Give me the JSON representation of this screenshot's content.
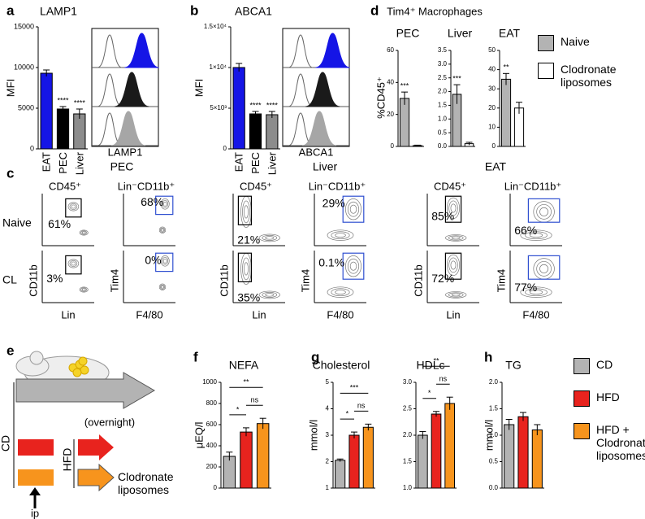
{
  "panel_letters": [
    "a",
    "b",
    "c",
    "d",
    "e",
    "f",
    "g",
    "h"
  ],
  "chart_data": [
    {
      "type": "bar",
      "title": "LAMP1",
      "ylabel": "MFI",
      "categories": [
        "EAT",
        "PEC",
        "Liver"
      ],
      "values": [
        9300,
        4900,
        4300
      ],
      "errors": [
        400,
        300,
        600
      ],
      "colors": [
        "#1515e6",
        "#000000",
        "#8c8c8c"
      ],
      "ylim": [
        0,
        15000
      ],
      "yticks": [
        0,
        5000,
        10000,
        15000
      ],
      "annotations": [
        "****",
        "****"
      ]
    },
    {
      "type": "bar",
      "title": "ABCA1",
      "ylabel": "MFI",
      "categories": [
        "EAT",
        "PEC",
        "Liver"
      ],
      "values": [
        10000,
        4300,
        4200
      ],
      "errors": [
        500,
        300,
        400
      ],
      "colors": [
        "#1515e6",
        "#000000",
        "#8c8c8c"
      ],
      "ylim": [
        0,
        15000
      ],
      "yticks": [
        0,
        {
          "value": 5000,
          "label": "5×10³"
        },
        {
          "value": 10000,
          "label": "1×10⁴"
        },
        {
          "value": 15000,
          "label": "1.5×10⁴"
        }
      ],
      "annotations": [
        "****",
        "****"
      ]
    },
    {
      "type": "bar",
      "title": "Tim4⁺ Macrophages",
      "ylabel": "%CD45⁺",
      "series": [
        {
          "name": "Naive",
          "color": "#b3b3b3"
        },
        {
          "name": "Clodronate liposomes",
          "color": "#ffffff"
        }
      ],
      "panels": [
        {
          "title": "PEC",
          "values": [
            30,
            0.5
          ],
          "errors": [
            4,
            0.3
          ],
          "ylim": [
            0,
            60
          ],
          "yticks": [
            0,
            20,
            40,
            60
          ],
          "annotations": [
            "***"
          ]
        },
        {
          "title": "Liver",
          "values": [
            1.9,
            0.1
          ],
          "errors": [
            0.35,
            0.05
          ],
          "ylim": [
            0,
            3.5
          ],
          "yticks": [
            {
              "value": 0,
              "label": "0.0"
            },
            0.5,
            {
              "value": 1,
              "label": "1.0"
            },
            1.5,
            {
              "value": 2,
              "label": "2.0"
            },
            2.5,
            {
              "value": 3,
              "label": "3.0"
            },
            3.5
          ],
          "annotations": [
            "***"
          ]
        },
        {
          "title": "EAT",
          "values": [
            35,
            20
          ],
          "errors": [
            3,
            3
          ],
          "ylim": [
            0,
            50
          ],
          "yticks": [
            0,
            10,
            20,
            30,
            40,
            50
          ],
          "annotations": [
            "**"
          ]
        }
      ]
    },
    {
      "type": "bar",
      "series": [
        {
          "name": "CD",
          "color": "#b3b3b3"
        },
        {
          "name": "HFD",
          "color": "#e8231e"
        },
        {
          "name": "HFD + Clodronate liposomes",
          "color": "#f7941d"
        }
      ],
      "panels": [
        {
          "title": "NEFA",
          "ylabel": "μEQ/l",
          "values": [
            300,
            530,
            610
          ],
          "errors": [
            40,
            40,
            50
          ],
          "ylim": [
            0,
            1000
          ],
          "yticks": [
            0,
            200,
            400,
            600,
            800,
            1000
          ],
          "annotations": [
            "*",
            "ns",
            "**"
          ]
        },
        {
          "title": "Cholesterol",
          "ylabel": "mmol/l",
          "values": [
            2.05,
            3.0,
            3.3
          ],
          "errors": [
            0.05,
            0.12,
            0.12
          ],
          "ylim": [
            1,
            5
          ],
          "yticks": [
            1,
            2,
            3,
            4,
            5
          ],
          "annotations": [
            "*",
            "ns",
            "***"
          ]
        },
        {
          "title": "HDLc",
          "values": [
            2.0,
            2.4,
            2.6
          ],
          "errors": [
            0.07,
            0.05,
            0.12
          ],
          "ylim": [
            1,
            3
          ],
          "yticks": [
            {
              "value": 1,
              "label": "1.0"
            },
            1.5,
            {
              "value": 2,
              "label": "2.0"
            },
            2.5,
            {
              "value": 3,
              "label": "3.0"
            }
          ],
          "annotations": [
            "*",
            "ns",
            "**"
          ]
        },
        {
          "title": "TG",
          "ylabel": "mmol/l",
          "values": [
            1.2,
            1.35,
            1.1
          ],
          "errors": [
            0.1,
            0.08,
            0.1
          ],
          "ylim": [
            0,
            2
          ],
          "yticks": [
            {
              "value": 0,
              "label": "0.0"
            },
            0.5,
            {
              "value": 1,
              "label": "1.0"
            },
            1.5,
            {
              "value": 2,
              "label": "2.0"
            }
          ]
        }
      ]
    }
  ],
  "histograms": [
    {
      "xlabel": "LAMP1"
    },
    {
      "xlabel": "ABCA1"
    }
  ],
  "flow": {
    "groups": [
      "PEC",
      "Liver",
      "EAT"
    ],
    "gates": [
      "CD45⁺",
      "Lin⁻CD11b⁺"
    ],
    "rows": [
      "Naive",
      "CL"
    ],
    "y_labels": [
      "CD11b",
      "Tim4"
    ],
    "x_labels": [
      "Lin",
      "F4/80"
    ],
    "percentages": [
      [
        "61%",
        "68%",
        "21%",
        "29%",
        "85%",
        "66%"
      ],
      [
        "3%",
        "0%",
        "35%",
        "0.1%",
        "72%",
        "77%"
      ]
    ]
  },
  "diagram": {
    "arrow_label": "(overnight)",
    "diets": [
      "CD",
      "HFD"
    ],
    "treatment": "Clodronate liposomes",
    "injection": "ip"
  }
}
